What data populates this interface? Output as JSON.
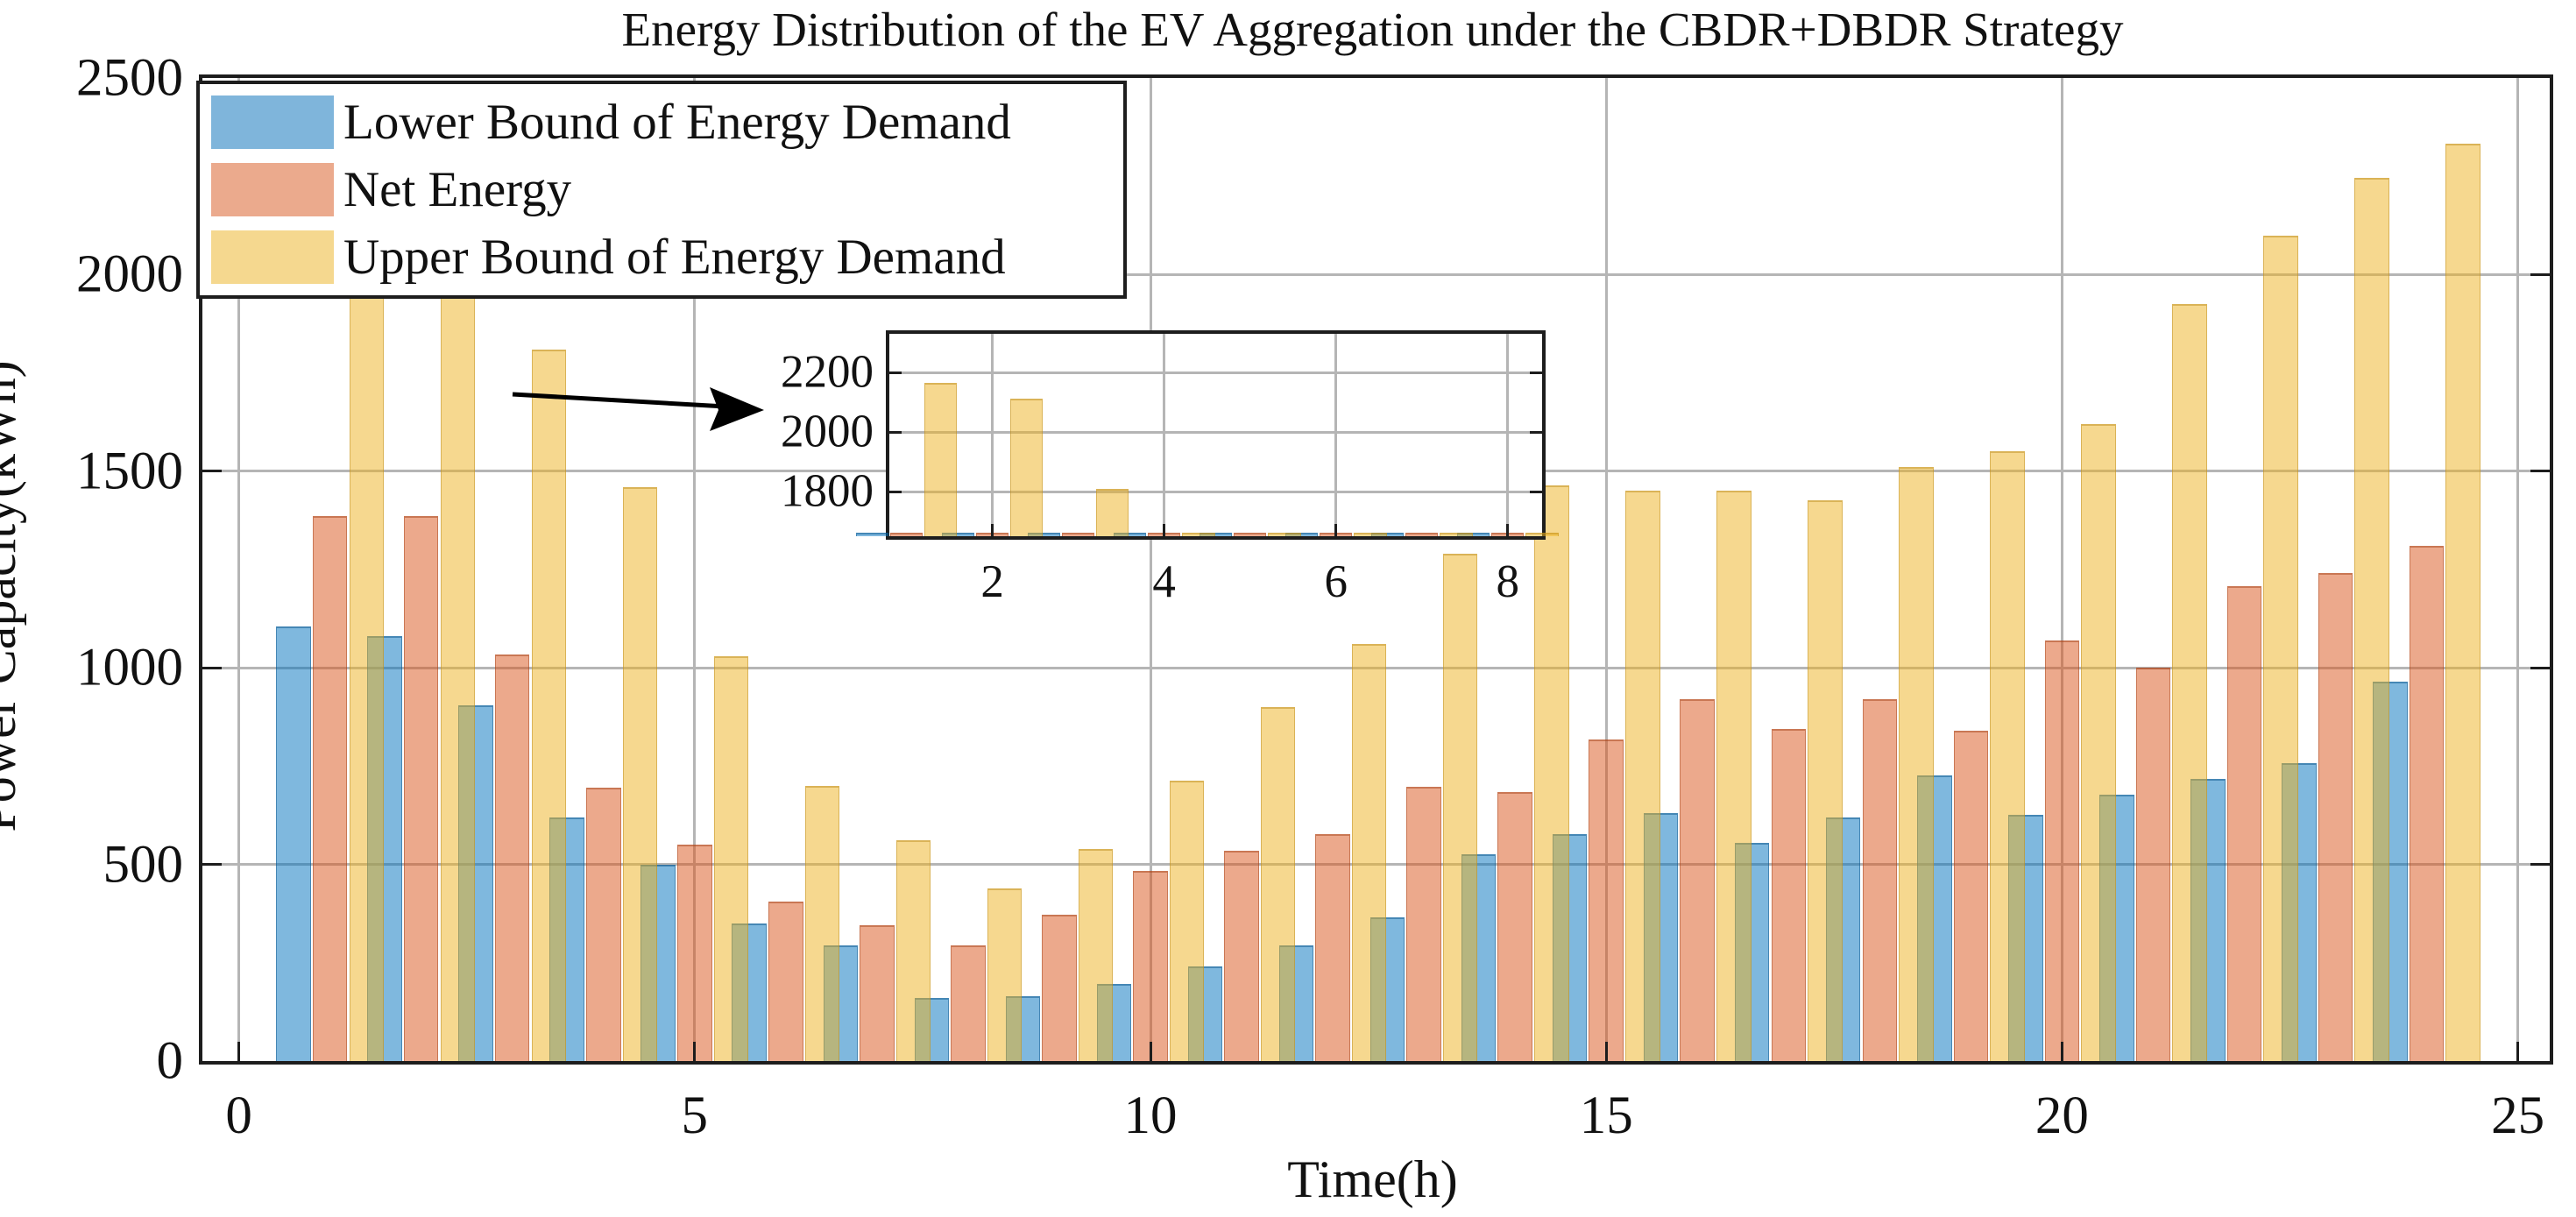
{
  "title": "Energy Distribution of the EV Aggregation under the CBDR+DBDR Strategy",
  "x_axis_label": "Time(h)",
  "y_axis_label": "Power Capacity(kWh)",
  "legend": {
    "items": [
      {
        "label": "Lower Bound of Energy Demand",
        "swatch_color": "#7fb5db"
      },
      {
        "label": "Net Energy",
        "swatch_color": "#ebaa8d"
      },
      {
        "label": "Upper Bound of Energy Demand",
        "swatch_color": "#f5d88f"
      }
    ]
  },
  "colors": {
    "series_blue_fill": "rgba(0,114,189,0.5)",
    "series_orange_fill": "rgba(217,83,25,0.5)",
    "series_yellow_fill": "rgba(237,177,32,0.5)",
    "series_blue_edge": "rgba(0,75,130,0.45)",
    "series_orange_edge": "rgba(160,58,16,0.45)",
    "series_yellow_edge": "rgba(185,135,20,0.45)",
    "gridline": "#b5b5b5",
    "axis_border": "#1d1d1d"
  },
  "chart_data": {
    "type": "bar",
    "title": "Energy Distribution of the EV Aggregation under the CBDR+DBDR Strategy",
    "xlabel": "Time(h)",
    "ylabel": "Power Capacity(kWh)",
    "categories": [
      1,
      2,
      3,
      4,
      5,
      6,
      7,
      8,
      9,
      10,
      11,
      12,
      13,
      14,
      15,
      16,
      17,
      18,
      19,
      20,
      21,
      22,
      23,
      24
    ],
    "series": [
      {
        "name": "Lower Bound of Energy Demand",
        "values": [
          1105,
          1080,
          905,
          620,
          500,
          350,
          295,
          160,
          165,
          195,
          240,
          295,
          365,
          525,
          578,
          630,
          555,
          620,
          727,
          627,
          678,
          718,
          758,
          965
        ]
      },
      {
        "name": "Net Energy",
        "values": [
          1385,
          1385,
          1035,
          695,
          550,
          405,
          345,
          295,
          372,
          483,
          535,
          577,
          697,
          685,
          817,
          920,
          845,
          920,
          840,
          1070,
          1000,
          1208,
          1242,
          1310
        ]
      },
      {
        "name": "Upper Bound of Energy Demand",
        "values": [
          2165,
          2112,
          1809,
          1460,
          1030,
          700,
          562,
          438,
          540,
          712,
          900,
          1060,
          1290,
          1465,
          1450,
          1450,
          1425,
          1510,
          1550,
          1620,
          1925,
          2098,
          2247,
          2333
        ]
      }
    ],
    "xlim": [
      -0.4,
      25.35
    ],
    "ylim": [
      0,
      2500
    ],
    "xticks": [
      0,
      5,
      10,
      15,
      20,
      25
    ],
    "yticks": [
      0,
      500,
      1000,
      1500,
      2000,
      2500
    ],
    "grid": true,
    "legend_position": "northwest",
    "bar_width": 0.38,
    "bar_offsets": [
      -0.4,
      0,
      0.4
    ],
    "inset": {
      "type": "bar",
      "description": "zoomed view of first hours",
      "xlim": [
        0.8,
        8.4
      ],
      "ylim": [
        1650,
        2330
      ],
      "xticks": [
        2,
        4,
        6,
        8
      ],
      "yticks": [
        1800,
        2000,
        2200
      ],
      "hours_shown": [
        1,
        2,
        3,
        4,
        5,
        6,
        7,
        8
      ]
    }
  }
}
